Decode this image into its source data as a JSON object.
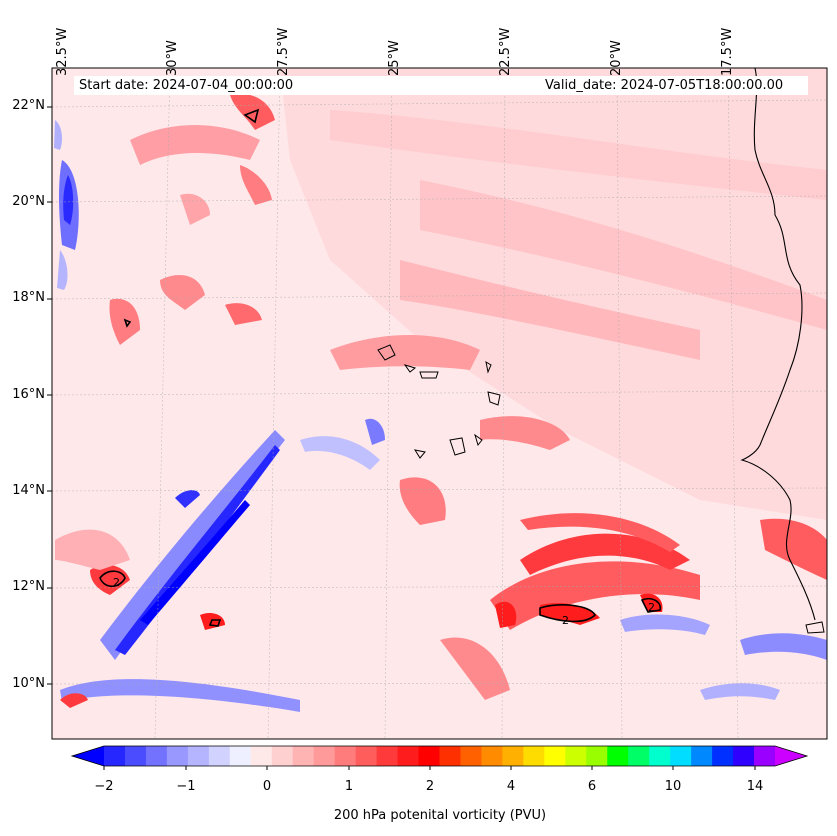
{
  "map": {
    "start_date_text": "Start date: 2024-07-04_00:00:00",
    "valid_date_text": "Valid_date: 2024-07-05T18:00:00.00",
    "lon_labels": [
      "32.5°W",
      "30°W",
      "27.5°W",
      "25°W",
      "22.5°W",
      "20°W",
      "17.5°W"
    ],
    "lat_labels": [
      "22°N",
      "20°N",
      "18°N",
      "16°N",
      "14°N",
      "12°N",
      "10°N"
    ],
    "contour_label": "2"
  },
  "colorbar": {
    "title": "200 hPa potenital vorticity (PVU)",
    "tick_labels": [
      "−2",
      "−1",
      "0",
      "1",
      "2",
      "4",
      "6",
      "10",
      "14"
    ],
    "colors": [
      "#0000ff",
      "#2626ff",
      "#4c4cff",
      "#7272ff",
      "#9898ff",
      "#b4b4ff",
      "#d2d2ff",
      "#eef0ff",
      "#ffe8e8",
      "#ffd0d0",
      "#ffb4b4",
      "#ff9a9a",
      "#ff7c7c",
      "#ff5c5c",
      "#ff3a3a",
      "#ff1c1c",
      "#ff0000",
      "#ff3000",
      "#ff6000",
      "#ff8c00",
      "#ffb000",
      "#ffdc00",
      "#ffff00",
      "#ccff00",
      "#99ff00",
      "#00ff00",
      "#00ff66",
      "#00ffcc",
      "#00ddff",
      "#0088ff",
      "#0030ff",
      "#3000ff",
      "#9900ff",
      "#cc00ff"
    ]
  }
}
